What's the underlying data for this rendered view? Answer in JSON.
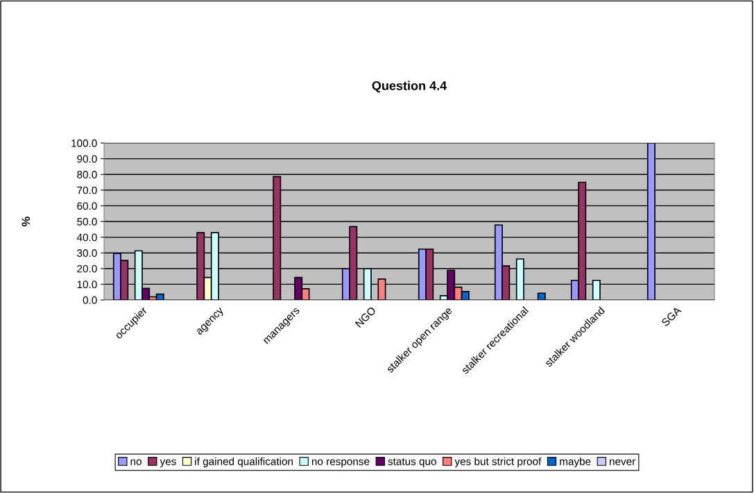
{
  "chart_data": {
    "type": "bar",
    "title": "Question 4.4",
    "ylabel": "%",
    "categories": [
      "occupier",
      "agency",
      "managers",
      "NGO",
      "stalker open range",
      "stalker recreational",
      "stalker woodland",
      "SGA"
    ],
    "series": [
      {
        "name": "no",
        "color": "#9999ff",
        "values": [
          29.7,
          null,
          null,
          20.0,
          32.4,
          47.8,
          12.5,
          100.0
        ]
      },
      {
        "name": "yes",
        "color": "#993366",
        "values": [
          25.2,
          42.9,
          78.6,
          46.7,
          32.4,
          21.7,
          75.0,
          null
        ]
      },
      {
        "name": "if gained qualification",
        "color": "#ffffcc",
        "values": [
          null,
          14.3,
          null,
          null,
          null,
          null,
          null,
          null
        ]
      },
      {
        "name": "no response",
        "color": "#ccffff",
        "values": [
          31.3,
          42.9,
          null,
          20.0,
          2.7,
          26.1,
          12.5,
          null
        ]
      },
      {
        "name": "status quo",
        "color": "#660066",
        "values": [
          7.4,
          null,
          14.3,
          null,
          18.9,
          null,
          null,
          null
        ]
      },
      {
        "name": "yes but strict proof",
        "color": "#ff8080",
        "values": [
          2.0,
          null,
          7.1,
          13.3,
          8.1,
          null,
          null,
          null
        ]
      },
      {
        "name": "maybe",
        "color": "#0066cc",
        "values": [
          3.7,
          null,
          null,
          null,
          5.4,
          4.3,
          null,
          null
        ]
      },
      {
        "name": "never",
        "color": "#ccccff",
        "values": [
          null,
          null,
          null,
          null,
          null,
          null,
          null,
          null
        ]
      }
    ],
    "ylim": [
      0,
      100
    ],
    "yticks": [
      {
        "value": 0,
        "label": "0.0"
      },
      {
        "value": 10,
        "label": "10.0"
      },
      {
        "value": 20,
        "label": "20.0"
      },
      {
        "value": 30,
        "label": "30.0"
      },
      {
        "value": 40,
        "label": "40.0"
      },
      {
        "value": 50,
        "label": "50.0"
      },
      {
        "value": 60,
        "label": "60.0"
      },
      {
        "value": 70,
        "label": "70.0"
      },
      {
        "value": 80,
        "label": "80.0"
      },
      {
        "value": 90,
        "label": "90.0"
      },
      {
        "value": 100,
        "label": "100.0"
      }
    ],
    "grid": "y",
    "legend": "bottom"
  }
}
